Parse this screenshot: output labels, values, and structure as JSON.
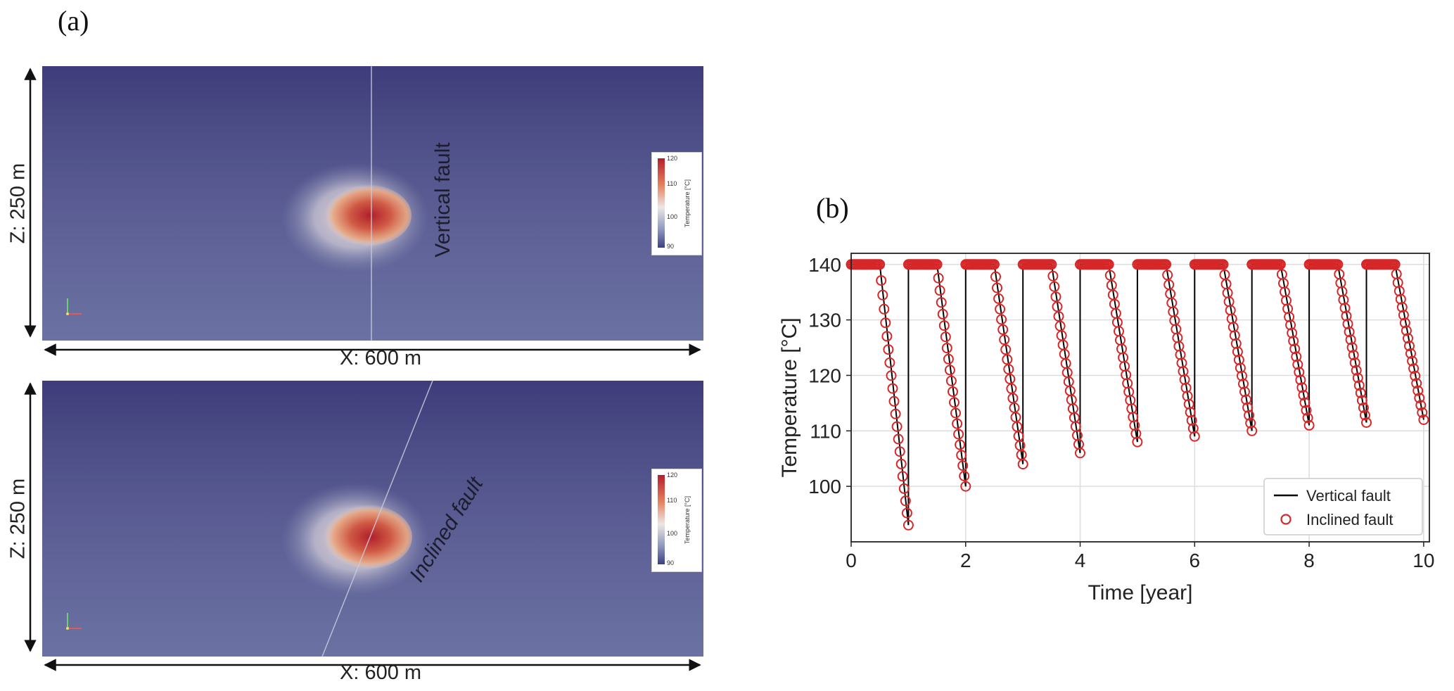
{
  "panel_labels": {
    "a": "(a)",
    "b": "(b)"
  },
  "top_panel": {
    "fault_label": "Vertical fault",
    "x_dimension": "X: 600 m",
    "z_dimension": "Z: 250 m",
    "colorbar": {
      "title": "Temperature [°C]",
      "ticks": [
        "120",
        "110",
        "100",
        "90"
      ]
    }
  },
  "bottom_panel": {
    "fault_label": "Inclined fault",
    "x_dimension": "X: 600 m",
    "z_dimension": "Z: 250 m",
    "colorbar": {
      "title": "Temperature [°C]",
      "ticks": [
        "120",
        "110",
        "100",
        "90"
      ]
    }
  },
  "colors": {
    "hot": "#b51e2b",
    "cold": "#3b4083",
    "neutral": "#ece7e4",
    "marker": "#d62728",
    "line": "#000000"
  },
  "chart_data": {
    "type": "line",
    "xlabel": "Time [year]",
    "ylabel": "Temperature [°C]",
    "xlim": [
      0,
      10.1
    ],
    "ylim": [
      90,
      142
    ],
    "xticks": [
      "0",
      "2",
      "4",
      "6",
      "8",
      "10"
    ],
    "yticks": [
      "100",
      "110",
      "120",
      "130",
      "140"
    ],
    "grid": true,
    "legend_position": "lower-right",
    "cycle_params": {
      "cycles": 10,
      "plateau_value": 140,
      "plateau_end_offset": 0.5,
      "cycle_end_minima": [
        93,
        100,
        104,
        106,
        108,
        109,
        110,
        111,
        111.5,
        112
      ]
    },
    "series": [
      {
        "name": "Vertical fault",
        "style": "line"
      },
      {
        "name": "Inclined fault",
        "style": "marker"
      }
    ]
  }
}
